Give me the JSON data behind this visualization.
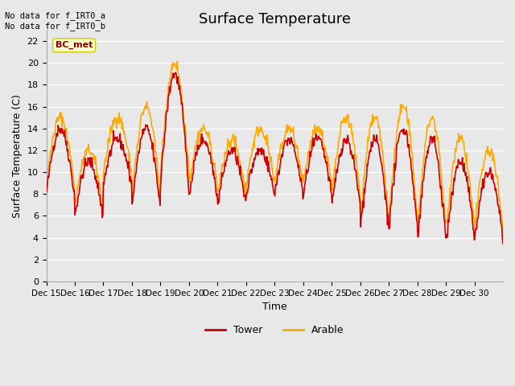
{
  "title": "Surface Temperature",
  "xlabel": "Time",
  "ylabel": "Surface Temperature (C)",
  "ylim": [
    0,
    23
  ],
  "yticks": [
    0,
    2,
    4,
    6,
    8,
    10,
    12,
    14,
    16,
    18,
    20,
    22
  ],
  "xtick_positions": [
    0,
    1,
    2,
    3,
    4,
    5,
    6,
    7,
    8,
    9,
    10,
    11,
    12,
    13,
    14,
    15
  ],
  "xtick_labels": [
    "Dec 15",
    "Dec 16",
    "Dec 17",
    "Dec 18",
    "Dec 19",
    "Dec 20",
    "Dec 21",
    "Dec 22",
    "Dec 23",
    "Dec 24",
    "Dec 25",
    "Dec 26",
    "Dec 27",
    "Dec 28",
    "Dec 29",
    "Dec 30"
  ],
  "tower_color": "#cc0000",
  "arable_color": "#ffaa00",
  "bg_color": "#e8e8e8",
  "annotation_text": "No data for f_IRT0_a\nNo data for f_IRT0_b",
  "bc_met_label": "BC_met",
  "legend_entries": [
    "Tower",
    "Arable"
  ],
  "linewidth": 1.2,
  "title_fontsize": 13,
  "n_days": 16
}
